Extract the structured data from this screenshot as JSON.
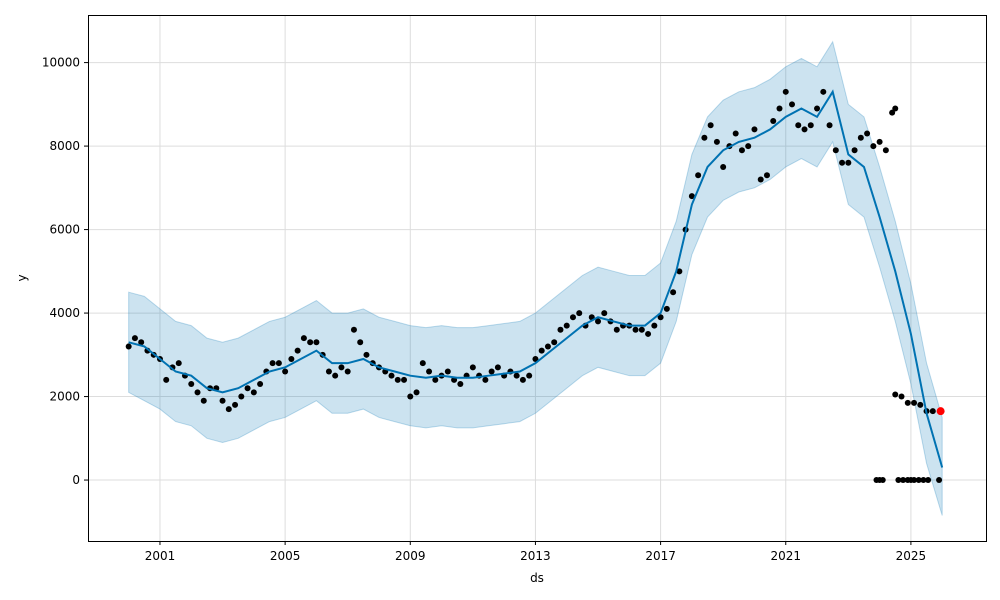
{
  "chart_data": {
    "type": "line",
    "title": "",
    "xlabel": "ds",
    "ylabel": "y",
    "xlim": [
      1998.7,
      2027.4
    ],
    "ylim": [
      -1460,
      11140
    ],
    "grid": true,
    "x_ticks": [
      2001,
      2005,
      2009,
      2013,
      2017,
      2021,
      2025
    ],
    "x_tick_labels": [
      "2001",
      "2005",
      "2009",
      "2013",
      "2017",
      "2021",
      "2025"
    ],
    "y_ticks": [
      0,
      2000,
      4000,
      6000,
      8000,
      10000
    ],
    "y_tick_labels": [
      "0",
      "2000",
      "4000",
      "6000",
      "8000",
      "10000"
    ],
    "colors": {
      "forecast": "#0072B2",
      "band": "#0072B2",
      "observed": "#000000",
      "highlight": "#ff0000",
      "grid": "#dddddd"
    },
    "forecast": {
      "name": "yhat",
      "x": [
        2000.0,
        2000.5,
        2001.0,
        2001.5,
        2002.0,
        2002.5,
        2003.0,
        2003.5,
        2004.0,
        2004.5,
        2005.0,
        2005.5,
        2006.0,
        2006.5,
        2007.0,
        2007.5,
        2008.0,
        2008.5,
        2009.0,
        2009.5,
        2010.0,
        2010.5,
        2011.0,
        2011.5,
        2012.0,
        2012.5,
        2013.0,
        2013.5,
        2014.0,
        2014.5,
        2015.0,
        2015.5,
        2016.0,
        2016.5,
        2017.0,
        2017.5,
        2018.0,
        2018.5,
        2019.0,
        2019.5,
        2020.0,
        2020.5,
        2021.0,
        2021.5,
        2022.0,
        2022.5,
        2023.0,
        2023.5,
        2024.0,
        2024.5,
        2025.0,
        2025.5,
        2026.0
      ],
      "yhat": [
        3300,
        3200,
        2900,
        2600,
        2500,
        2200,
        2100,
        2200,
        2400,
        2600,
        2700,
        2900,
        3100,
        2800,
        2800,
        2900,
        2700,
        2600,
        2500,
        2450,
        2500,
        2450,
        2450,
        2500,
        2550,
        2600,
        2800,
        3100,
        3400,
        3700,
        3900,
        3800,
        3700,
        3700,
        4000,
        5000,
        6600,
        7500,
        7900,
        8100,
        8200,
        8400,
        8700,
        8900,
        8700,
        9300,
        7800,
        7500,
        6300,
        5000,
        3500,
        1600,
        300
      ],
      "yhat_lower": [
        2100,
        1900,
        1700,
        1400,
        1300,
        1000,
        900,
        1000,
        1200,
        1400,
        1500,
        1700,
        1900,
        1600,
        1600,
        1700,
        1500,
        1400,
        1300,
        1250,
        1300,
        1250,
        1250,
        1300,
        1350,
        1400,
        1600,
        1900,
        2200,
        2500,
        2700,
        2600,
        2500,
        2500,
        2800,
        3800,
        5400,
        6300,
        6700,
        6900,
        7000,
        7200,
        7500,
        7700,
        7500,
        8100,
        6600,
        6300,
        5100,
        3800,
        2300,
        400,
        -850
      ],
      "yhat_upper": [
        4500,
        4400,
        4100,
        3800,
        3700,
        3400,
        3300,
        3400,
        3600,
        3800,
        3900,
        4100,
        4300,
        4000,
        4000,
        4100,
        3900,
        3800,
        3700,
        3650,
        3700,
        3650,
        3650,
        3700,
        3750,
        3800,
        4000,
        4300,
        4600,
        4900,
        5100,
        5000,
        4900,
        4900,
        5200,
        6200,
        7800,
        8700,
        9100,
        9300,
        9400,
        9600,
        9900,
        10100,
        9900,
        10500,
        9000,
        8700,
        7500,
        6200,
        4700,
        2800,
        1500
      ]
    },
    "observed": {
      "name": "y",
      "points": [
        [
          2000.0,
          3200
        ],
        [
          2000.2,
          3400
        ],
        [
          2000.4,
          3300
        ],
        [
          2000.6,
          3100
        ],
        [
          2000.8,
          3000
        ],
        [
          2001.0,
          2900
        ],
        [
          2001.2,
          2400
        ],
        [
          2001.4,
          2700
        ],
        [
          2001.6,
          2800
        ],
        [
          2001.8,
          2500
        ],
        [
          2002.0,
          2300
        ],
        [
          2002.2,
          2100
        ],
        [
          2002.4,
          1900
        ],
        [
          2002.6,
          2200
        ],
        [
          2002.8,
          2200
        ],
        [
          2003.0,
          1900
        ],
        [
          2003.2,
          1700
        ],
        [
          2003.4,
          1800
        ],
        [
          2003.6,
          2000
        ],
        [
          2003.8,
          2200
        ],
        [
          2004.0,
          2100
        ],
        [
          2004.2,
          2300
        ],
        [
          2004.4,
          2600
        ],
        [
          2004.6,
          2800
        ],
        [
          2004.8,
          2800
        ],
        [
          2005.0,
          2600
        ],
        [
          2005.2,
          2900
        ],
        [
          2005.4,
          3100
        ],
        [
          2005.6,
          3400
        ],
        [
          2005.8,
          3300
        ],
        [
          2006.0,
          3300
        ],
        [
          2006.2,
          3000
        ],
        [
          2006.4,
          2600
        ],
        [
          2006.6,
          2500
        ],
        [
          2006.8,
          2700
        ],
        [
          2007.0,
          2600
        ],
        [
          2007.2,
          3600
        ],
        [
          2007.4,
          3300
        ],
        [
          2007.6,
          3000
        ],
        [
          2007.8,
          2800
        ],
        [
          2008.0,
          2700
        ],
        [
          2008.2,
          2600
        ],
        [
          2008.4,
          2500
        ],
        [
          2008.6,
          2400
        ],
        [
          2008.8,
          2400
        ],
        [
          2009.0,
          2000
        ],
        [
          2009.2,
          2100
        ],
        [
          2009.4,
          2800
        ],
        [
          2009.6,
          2600
        ],
        [
          2009.8,
          2400
        ],
        [
          2010.0,
          2500
        ],
        [
          2010.2,
          2600
        ],
        [
          2010.4,
          2400
        ],
        [
          2010.6,
          2300
        ],
        [
          2010.8,
          2500
        ],
        [
          2011.0,
          2700
        ],
        [
          2011.2,
          2500
        ],
        [
          2011.4,
          2400
        ],
        [
          2011.6,
          2600
        ],
        [
          2011.8,
          2700
        ],
        [
          2012.0,
          2500
        ],
        [
          2012.2,
          2600
        ],
        [
          2012.4,
          2500
        ],
        [
          2012.6,
          2400
        ],
        [
          2012.8,
          2500
        ],
        [
          2013.0,
          2900
        ],
        [
          2013.2,
          3100
        ],
        [
          2013.4,
          3200
        ],
        [
          2013.6,
          3300
        ],
        [
          2013.8,
          3600
        ],
        [
          2014.0,
          3700
        ],
        [
          2014.2,
          3900
        ],
        [
          2014.4,
          4000
        ],
        [
          2014.6,
          3700
        ],
        [
          2014.8,
          3900
        ],
        [
          2015.0,
          3800
        ],
        [
          2015.2,
          4000
        ],
        [
          2015.4,
          3800
        ],
        [
          2015.6,
          3600
        ],
        [
          2015.8,
          3700
        ],
        [
          2016.0,
          3700
        ],
        [
          2016.2,
          3600
        ],
        [
          2016.4,
          3600
        ],
        [
          2016.6,
          3500
        ],
        [
          2016.8,
          3700
        ],
        [
          2017.0,
          3900
        ],
        [
          2017.2,
          4100
        ],
        [
          2017.4,
          4500
        ],
        [
          2017.6,
          5000
        ],
        [
          2017.8,
          6000
        ],
        [
          2018.0,
          6800
        ],
        [
          2018.2,
          7300
        ],
        [
          2018.4,
          8200
        ],
        [
          2018.6,
          8500
        ],
        [
          2018.8,
          8100
        ],
        [
          2019.0,
          7500
        ],
        [
          2019.2,
          8000
        ],
        [
          2019.4,
          8300
        ],
        [
          2019.6,
          7900
        ],
        [
          2019.8,
          8000
        ],
        [
          2020.0,
          8400
        ],
        [
          2020.2,
          7200
        ],
        [
          2020.4,
          7300
        ],
        [
          2020.6,
          8600
        ],
        [
          2020.8,
          8900
        ],
        [
          2021.0,
          9300
        ],
        [
          2021.2,
          9000
        ],
        [
          2021.4,
          8500
        ],
        [
          2021.6,
          8400
        ],
        [
          2021.8,
          8500
        ],
        [
          2022.0,
          8900
        ],
        [
          2022.2,
          9300
        ],
        [
          2022.4,
          8500
        ],
        [
          2022.6,
          7900
        ],
        [
          2022.8,
          7600
        ],
        [
          2023.0,
          7600
        ],
        [
          2023.2,
          7900
        ],
        [
          2023.4,
          8200
        ],
        [
          2023.6,
          8300
        ],
        [
          2023.8,
          8000
        ],
        [
          2024.0,
          8100
        ],
        [
          2024.2,
          7900
        ],
        [
          2024.4,
          8800
        ],
        [
          2024.5,
          8900
        ],
        [
          2023.9,
          0
        ],
        [
          2024.0,
          0
        ],
        [
          2024.1,
          0
        ],
        [
          2024.6,
          0
        ],
        [
          2024.75,
          0
        ],
        [
          2024.9,
          0
        ],
        [
          2025.0,
          0
        ],
        [
          2025.1,
          0
        ],
        [
          2025.25,
          0
        ],
        [
          2025.4,
          0
        ],
        [
          2025.55,
          0
        ],
        [
          2025.9,
          0
        ],
        [
          2024.5,
          2050
        ],
        [
          2024.7,
          2000
        ],
        [
          2024.9,
          1850
        ],
        [
          2025.1,
          1850
        ],
        [
          2025.3,
          1800
        ],
        [
          2025.5,
          1650
        ],
        [
          2025.7,
          1650
        ]
      ],
      "highlight": [
        2025.95,
        1650
      ]
    }
  }
}
